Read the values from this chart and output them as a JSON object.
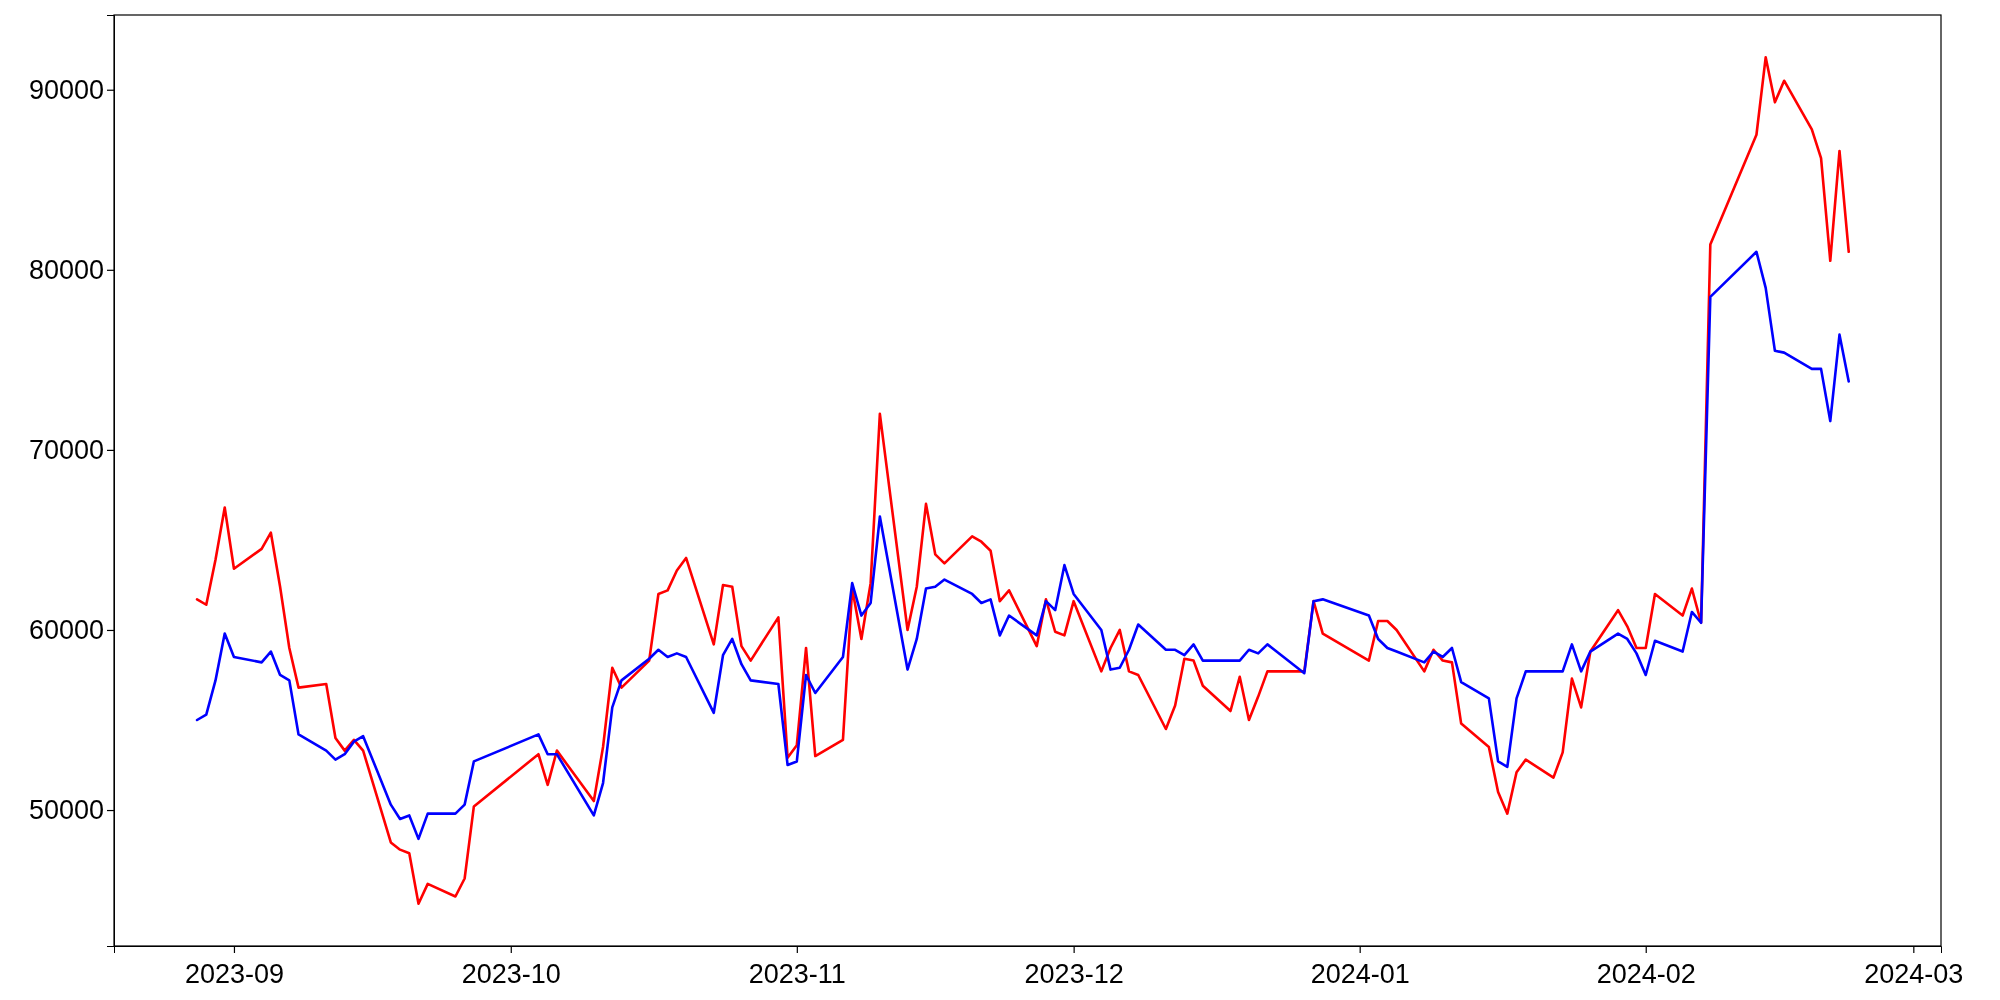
{
  "chart_data": {
    "type": "line",
    "x": [
      "2023-08-28",
      "2023-08-29",
      "2023-08-30",
      "2023-08-31",
      "2023-09-01",
      "2023-09-04",
      "2023-09-05",
      "2023-09-06",
      "2023-09-07",
      "2023-09-08",
      "2023-09-11",
      "2023-09-12",
      "2023-09-13",
      "2023-09-14",
      "2023-09-15",
      "2023-09-18",
      "2023-09-19",
      "2023-09-20",
      "2023-09-21",
      "2023-09-22",
      "2023-09-25",
      "2023-09-26",
      "2023-09-27",
      "2023-10-04",
      "2023-10-05",
      "2023-10-06",
      "2023-10-10",
      "2023-10-11",
      "2023-10-12",
      "2023-10-13",
      "2023-10-16",
      "2023-10-17",
      "2023-10-18",
      "2023-10-19",
      "2023-10-20",
      "2023-10-23",
      "2023-10-24",
      "2023-10-25",
      "2023-10-26",
      "2023-10-27",
      "2023-10-30",
      "2023-10-31",
      "2023-11-01",
      "2023-11-02",
      "2023-11-03",
      "2023-11-06",
      "2023-11-07",
      "2023-11-08",
      "2023-11-09",
      "2023-11-10",
      "2023-11-13",
      "2023-11-14",
      "2023-11-15",
      "2023-11-16",
      "2023-11-17",
      "2023-11-20",
      "2023-11-21",
      "2023-11-22",
      "2023-11-23",
      "2023-11-24",
      "2023-11-27",
      "2023-11-28",
      "2023-11-29",
      "2023-11-30",
      "2023-12-01",
      "2023-12-04",
      "2023-12-05",
      "2023-12-06",
      "2023-12-07",
      "2023-12-08",
      "2023-12-11",
      "2023-12-12",
      "2023-12-13",
      "2023-12-14",
      "2023-12-15",
      "2023-12-18",
      "2023-12-19",
      "2023-12-20",
      "2023-12-21",
      "2023-12-22",
      "2023-12-26",
      "2023-12-27",
      "2023-12-28",
      "2024-01-02",
      "2024-01-03",
      "2024-01-04",
      "2024-01-05",
      "2024-01-08",
      "2024-01-09",
      "2024-01-10",
      "2024-01-11",
      "2024-01-12",
      "2024-01-15",
      "2024-01-16",
      "2024-01-17",
      "2024-01-18",
      "2024-01-19",
      "2024-01-22",
      "2024-01-23",
      "2024-01-24",
      "2024-01-25",
      "2024-01-26",
      "2024-01-29",
      "2024-01-30",
      "2024-01-31",
      "2024-02-01",
      "2024-02-02",
      "2024-02-05",
      "2024-02-06",
      "2024-02-07",
      "2024-02-08",
      "2024-02-13",
      "2024-02-14",
      "2024-02-15",
      "2024-02-16",
      "2024-02-19",
      "2024-02-20",
      "2024-02-21",
      "2024-02-22",
      "2024-02-23"
    ],
    "series": [
      {
        "color": "#ff0000",
        "values": [
          61700,
          61400,
          63900,
          66800,
          63400,
          64500,
          65400,
          62400,
          59000,
          56800,
          57000,
          54000,
          53300,
          53900,
          53300,
          48200,
          47800,
          47600,
          44800,
          45900,
          45200,
          46200,
          50200,
          53100,
          51400,
          53300,
          50500,
          53500,
          57900,
          56800,
          58300,
          62000,
          62200,
          63300,
          64000,
          59200,
          62500,
          62400,
          59100,
          58300,
          60700,
          52900,
          53600,
          59000,
          53000,
          53900,
          62300,
          59500,
          62600,
          72000,
          60000,
          62400,
          67000,
          64200,
          63700,
          65200,
          64900,
          64400,
          61600,
          62200,
          59100,
          61700,
          59900,
          59700,
          61600,
          57700,
          59000,
          60000,
          57700,
          57500,
          54500,
          55800,
          58400,
          58300,
          56900,
          55500,
          57400,
          55000,
          56300,
          57700,
          57700,
          61600,
          59800,
          58300,
          60500,
          60500,
          60000,
          57700,
          58900,
          58300,
          58200,
          54800,
          53500,
          51000,
          49800,
          52100,
          52800,
          51800,
          53200,
          57300,
          55700,
          58800,
          61100,
          60200,
          59000,
          59000,
          62000,
          60800,
          62300,
          60400,
          81400,
          87500,
          91800,
          89300,
          90500,
          87800,
          86200,
          80500,
          86600,
          81000
        ]
      },
      {
        "color": "#0000ff",
        "values": [
          55000,
          55300,
          57200,
          59800,
          58500,
          58200,
          58800,
          57500,
          57200,
          54200,
          53300,
          52800,
          53100,
          53800,
          54100,
          50300,
          49500,
          49700,
          48400,
          49800,
          49800,
          50300,
          52700,
          54200,
          53100,
          53100,
          49700,
          51500,
          55700,
          57200,
          58400,
          58900,
          58500,
          58700,
          58500,
          55400,
          58600,
          59500,
          58100,
          57200,
          57000,
          52500,
          52700,
          57500,
          56500,
          58500,
          62600,
          60800,
          61500,
          66300,
          57800,
          59500,
          62300,
          62400,
          62800,
          62000,
          61500,
          61700,
          59700,
          60800,
          59700,
          61600,
          61100,
          63600,
          62000,
          60000,
          57800,
          57900,
          58900,
          60300,
          58900,
          58900,
          58600,
          59200,
          58300,
          58300,
          58300,
          58900,
          58700,
          59200,
          57600,
          61600,
          61700,
          60800,
          59500,
          59000,
          58800,
          58200,
          58800,
          58500,
          59000,
          57100,
          56200,
          52700,
          52400,
          56200,
          57700,
          57700,
          57700,
          59200,
          57700,
          58800,
          59800,
          59500,
          58700,
          57500,
          59400,
          58800,
          61000,
          60400,
          78500,
          81000,
          79000,
          75500,
          75400,
          74500,
          74500,
          71600,
          76400,
          73800
        ]
      }
    ],
    "xlim": [
      "2023-08-19",
      "2024-03-04"
    ],
    "xticks": [
      "2023-09",
      "2023-10",
      "2023-11",
      "2023-12",
      "2024-01",
      "2024-02",
      "2024-03"
    ],
    "ylim": [
      42450,
      94150
    ],
    "yticks": [
      50000,
      60000,
      70000,
      80000,
      90000
    ],
    "grid": false,
    "marker": "none",
    "line_style": "solid"
  }
}
